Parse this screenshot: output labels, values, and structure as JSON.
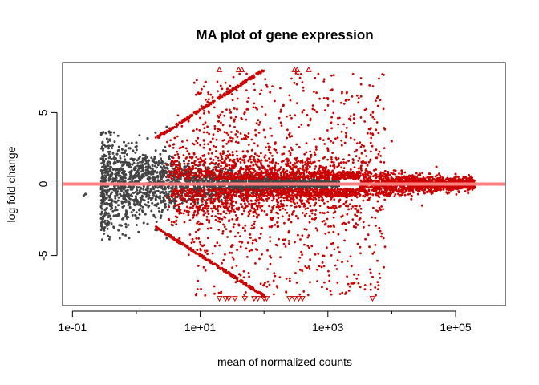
{
  "chart_data": {
    "type": "scatter",
    "title": "MA plot of gene expression",
    "xlabel": "mean of normalized counts",
    "ylabel": "log fold change",
    "x_scale": "log10",
    "xlim": [
      0.07,
      600000
    ],
    "ylim": [
      -8.5,
      8.5
    ],
    "x_ticks": [
      0.1,
      10,
      1000,
      100000
    ],
    "x_tick_labels": [
      "1e-01",
      "1e+01",
      "1e+03",
      "1e+05"
    ],
    "y_ticks": [
      -5,
      0,
      5
    ],
    "y_tick_labels": [
      "-5",
      "0",
      "5"
    ],
    "grid": false,
    "legend": "none",
    "reference_line": {
      "y": 0,
      "color": "#ff7f7f"
    },
    "colors": {
      "not_significant": "#444444",
      "significant": "#cc0000"
    },
    "series": [
      {
        "role": "not-significant",
        "color": "#444444",
        "x_range": [
          0.15,
          1500
        ],
        "y_spread_note": "funnel narrowing with increasing mean",
        "points": [
          [
            0.15,
            -0.8
          ],
          [
            0.16,
            -0.7
          ],
          [
            0.3,
            1.2
          ],
          [
            0.32,
            1.2
          ],
          [
            0.5,
            2.1
          ],
          [
            0.6,
            2.2
          ],
          [
            0.8,
            2.5
          ],
          [
            1.0,
            2.9
          ],
          [
            1.5,
            3.2
          ],
          [
            2.0,
            3.6
          ],
          [
            3.0,
            4.0
          ],
          [
            0.5,
            -1.8
          ],
          [
            0.7,
            -2.0
          ],
          [
            1.0,
            -2.4
          ],
          [
            1.5,
            -2.8
          ],
          [
            2.0,
            -3.2
          ],
          [
            3.0,
            -3.8
          ]
        ]
      },
      {
        "role": "significant",
        "color": "#cc0000",
        "x_range": [
          2,
          200000
        ],
        "upper_edge_line": [
          [
            2,
            3.2
          ],
          [
            100,
            8.0
          ]
        ],
        "lower_edge_line": [
          [
            2,
            -3.0
          ],
          [
            100,
            -7.8
          ]
        ],
        "sample_outliers": [
          [
            30,
            5.0
          ],
          [
            50,
            5.0
          ],
          [
            200,
            5.5
          ],
          [
            1000,
            6.0
          ],
          [
            3000,
            5.7
          ],
          [
            10000,
            3.0
          ],
          [
            100000,
            0.7
          ],
          [
            50000,
            1.2
          ],
          [
            30000,
            -1.5
          ],
          [
            5000,
            -6.5
          ]
        ]
      },
      {
        "role": "clipped-up",
        "marker": "triangle-up",
        "color": "#cc0000",
        "x": [
          20,
          40,
          45,
          300,
          330,
          500
        ],
        "y": 8.0
      },
      {
        "role": "clipped-down",
        "marker": "triangle-down",
        "color": "#cc0000",
        "x": [
          20,
          25,
          28,
          35,
          50,
          70,
          80,
          100,
          110,
          250,
          300,
          350,
          400,
          5000
        ],
        "y": -8.0
      }
    ]
  }
}
